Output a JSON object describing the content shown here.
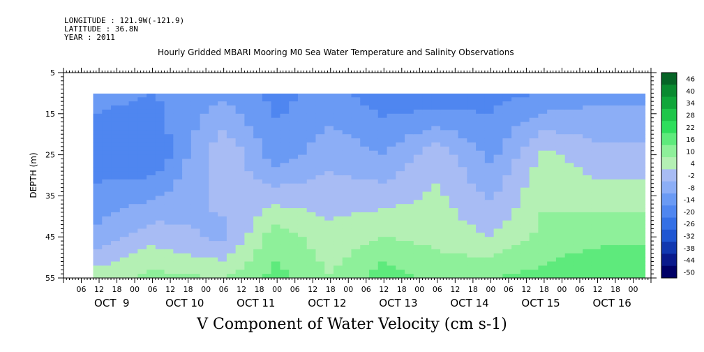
{
  "header": {
    "longitude": "LONGITUDE : 121.9W(-121.9)",
    "latitude": "LATITUDE : 36.8N",
    "year": "YEAR : 2011"
  },
  "chart_data": {
    "type": "heatmap",
    "title": "Hourly Gridded MBARI Mooring M0 Sea Water Temperature and Salinity Observations",
    "xlabel": "V Component of Water Velocity (cm s-1)",
    "ylabel": "DEPTH (m)",
    "ylim": [
      55,
      5
    ],
    "y_ticks": [
      5,
      15,
      25,
      35,
      45,
      55
    ],
    "x_range_hours": [
      "OCT 8 00",
      "OCT 16 06"
    ],
    "x_hour_ticks": [
      "06",
      "12",
      "18",
      "00",
      "06",
      "12",
      "18",
      "00",
      "06",
      "12",
      "18",
      "00",
      "06",
      "12",
      "18",
      "00",
      "06",
      "12",
      "18",
      "00",
      "06",
      "12",
      "18",
      "00",
      "06",
      "12",
      "18",
      "00",
      "06",
      "12",
      "18",
      "00"
    ],
    "x_day_labels": [
      "OCT  9",
      "OCT 10",
      "OCT 11",
      "OCT 12",
      "OCT 13",
      "OCT 14",
      "OCT 15",
      "OCT 16"
    ],
    "data_depth_range": [
      10,
      55
    ],
    "colorbar": {
      "levels": [
        -50,
        -44,
        -38,
        -32,
        -26,
        -20,
        -14,
        -8,
        -2,
        4,
        10,
        16,
        22,
        28,
        34,
        40,
        46
      ],
      "labels": [
        "46",
        "40",
        "34",
        "28",
        "22",
        "16",
        "10",
        "4",
        "-2",
        "-8",
        "-14",
        "-20",
        "-26",
        "-32",
        "-38",
        "-44",
        "-50"
      ],
      "colors_low_to_high": [
        "#000066",
        "#0a1a8c",
        "#1238b0",
        "#1f56d2",
        "#3470e6",
        "#4f86f0",
        "#6a9af4",
        "#8caef6",
        "#a8bcf4",
        "#b4f0b4",
        "#8ef09a",
        "#5eea7c",
        "#2ede5c",
        "#1ec64a",
        "#10a63a",
        "#0a8a30",
        "#066426"
      ]
    },
    "profiles": [
      {
        "time": "OCT 8 12",
        "values": {
          "10": -12,
          "25": -18,
          "45": -6,
          "55": 8
        }
      },
      {
        "time": "OCT 9 06",
        "values": {
          "10": -14,
          "25": -20,
          "45": 2,
          "55": 12
        }
      },
      {
        "time": "OCT 10 06",
        "values": {
          "10": -10,
          "25": 4,
          "45": -4,
          "55": 10
        }
      },
      {
        "time": "OCT 11 00",
        "values": {
          "10": -16,
          "25": -12,
          "45": 14,
          "55": 18
        }
      },
      {
        "time": "OCT 11 18",
        "values": {
          "10": -12,
          "25": -4,
          "45": 6,
          "55": 10
        }
      },
      {
        "time": "OCT 12 12",
        "values": {
          "10": -18,
          "25": -8,
          "45": 10,
          "55": 20
        }
      },
      {
        "time": "OCT 13 06",
        "values": {
          "10": -20,
          "25": 2,
          "45": 8,
          "55": 14
        }
      },
      {
        "time": "OCT 14 00",
        "values": {
          "10": -16,
          "25": -10,
          "45": 4,
          "55": 16
        }
      },
      {
        "time": "OCT 14 18",
        "values": {
          "10": -14,
          "25": 6,
          "45": 12,
          "55": 18
        }
      },
      {
        "time": "OCT 15 12",
        "values": {
          "10": -10,
          "25": 0,
          "45": 14,
          "55": 22
        }
      }
    ]
  }
}
